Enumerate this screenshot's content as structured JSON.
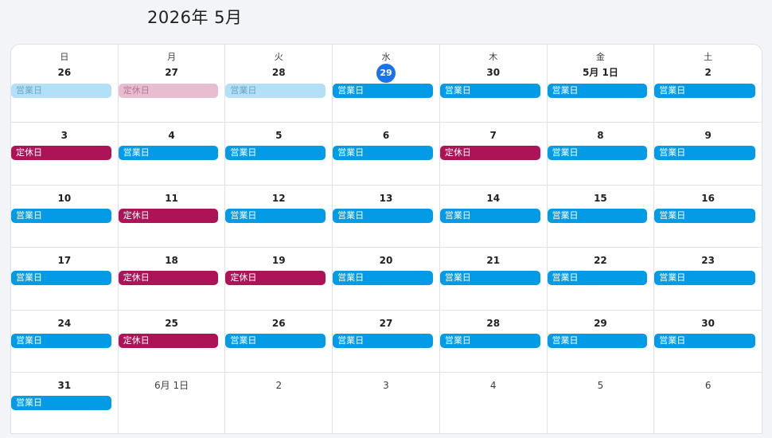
{
  "header": {
    "title": "2026年 5月"
  },
  "weekdays": [
    "日",
    "月",
    "火",
    "水",
    "木",
    "金",
    "土"
  ],
  "colors": {
    "open": "#039be5",
    "closed": "#ad1457",
    "today": "#1a73e8"
  },
  "weeks": [
    [
      {
        "label": "26",
        "muted": false,
        "event": "営業日",
        "type": "open",
        "faded": true
      },
      {
        "label": "27",
        "muted": false,
        "event": "定休日",
        "type": "closed",
        "faded": true
      },
      {
        "label": "28",
        "muted": false,
        "event": "営業日",
        "type": "open",
        "faded": true
      },
      {
        "label": "29",
        "today": true,
        "event": "営業日",
        "type": "open"
      },
      {
        "label": "30",
        "muted": false,
        "event": "営業日",
        "type": "open"
      },
      {
        "label": "5月 1日",
        "muted": false,
        "event": "営業日",
        "type": "open"
      },
      {
        "label": "2",
        "muted": false,
        "event": "営業日",
        "type": "open"
      }
    ],
    [
      {
        "label": "3",
        "event": "定休日",
        "type": "closed"
      },
      {
        "label": "4",
        "event": "営業日",
        "type": "open"
      },
      {
        "label": "5",
        "event": "営業日",
        "type": "open"
      },
      {
        "label": "6",
        "event": "営業日",
        "type": "open"
      },
      {
        "label": "7",
        "event": "定休日",
        "type": "closed"
      },
      {
        "label": "8",
        "event": "営業日",
        "type": "open"
      },
      {
        "label": "9",
        "event": "営業日",
        "type": "open"
      }
    ],
    [
      {
        "label": "10",
        "event": "営業日",
        "type": "open"
      },
      {
        "label": "11",
        "event": "定休日",
        "type": "closed"
      },
      {
        "label": "12",
        "event": "営業日",
        "type": "open"
      },
      {
        "label": "13",
        "event": "営業日",
        "type": "open"
      },
      {
        "label": "14",
        "event": "営業日",
        "type": "open"
      },
      {
        "label": "15",
        "event": "営業日",
        "type": "open"
      },
      {
        "label": "16",
        "event": "営業日",
        "type": "open"
      }
    ],
    [
      {
        "label": "17",
        "event": "営業日",
        "type": "open"
      },
      {
        "label": "18",
        "event": "定休日",
        "type": "closed"
      },
      {
        "label": "19",
        "event": "定休日",
        "type": "closed"
      },
      {
        "label": "20",
        "event": "営業日",
        "type": "open"
      },
      {
        "label": "21",
        "event": "営業日",
        "type": "open"
      },
      {
        "label": "22",
        "event": "営業日",
        "type": "open"
      },
      {
        "label": "23",
        "event": "営業日",
        "type": "open"
      }
    ],
    [
      {
        "label": "24",
        "event": "営業日",
        "type": "open"
      },
      {
        "label": "25",
        "event": "定休日",
        "type": "closed"
      },
      {
        "label": "26",
        "event": "営業日",
        "type": "open"
      },
      {
        "label": "27",
        "event": "営業日",
        "type": "open"
      },
      {
        "label": "28",
        "event": "営業日",
        "type": "open"
      },
      {
        "label": "29",
        "event": "営業日",
        "type": "open"
      },
      {
        "label": "30",
        "event": "営業日",
        "type": "open"
      }
    ],
    [
      {
        "label": "31",
        "event": "営業日",
        "type": "open"
      },
      {
        "label": "6月 1日",
        "muted": true
      },
      {
        "label": "2",
        "muted": true
      },
      {
        "label": "3",
        "muted": true
      },
      {
        "label": "4",
        "muted": true
      },
      {
        "label": "5",
        "muted": true
      },
      {
        "label": "6",
        "muted": true
      }
    ]
  ]
}
